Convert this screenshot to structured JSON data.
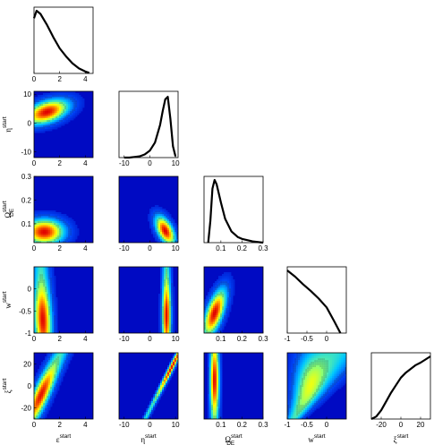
{
  "chart_data": {
    "type": "heatmap",
    "title": "",
    "layout": "corner-plot",
    "grid": false,
    "colormap": [
      "#0000bb",
      "#0050ff",
      "#00c8ff",
      "#7dff82",
      "#ffff00",
      "#ff7800",
      "#e00000"
    ],
    "parameters": [
      {
        "id": "eps",
        "symbol": "ε",
        "sub": "",
        "sup": "start",
        "range": [
          0,
          4.6
        ],
        "ticks": [
          0,
          2,
          4
        ]
      },
      {
        "id": "eta",
        "symbol": "η",
        "sub": "",
        "sup": "start",
        "range": [
          -12,
          11
        ],
        "ticks": [
          -10,
          0,
          10
        ]
      },
      {
        "id": "om",
        "symbol": "Ω",
        "sub": "DE",
        "sup": "start",
        "range": [
          0.02,
          0.3
        ],
        "ticks": [
          0.1,
          0.2,
          0.3
        ]
      },
      {
        "id": "w",
        "symbol": "w",
        "sub": "",
        "sup": "start",
        "range": [
          -1,
          0.5
        ],
        "ticks": [
          -1,
          -0.5,
          0
        ]
      },
      {
        "id": "xi",
        "symbol": "ξ",
        "sub": "",
        "sup": "start",
        "range": [
          -30,
          30
        ],
        "ticks": [
          -20,
          0,
          20
        ]
      }
    ],
    "marginals": [
      {
        "param": "eps",
        "x": [
          0,
          0.2,
          0.5,
          1,
          1.5,
          2,
          2.5,
          3,
          3.5,
          4,
          4.3
        ],
        "density": [
          0.88,
          1.0,
          0.95,
          0.78,
          0.58,
          0.4,
          0.27,
          0.16,
          0.08,
          0.03,
          0.01
        ]
      },
      {
        "param": "eta",
        "x": [
          -10,
          -8,
          -6,
          -4,
          -2,
          0,
          2,
          4,
          5,
          6,
          7,
          8,
          9,
          10
        ],
        "density": [
          0,
          0,
          0.01,
          0.02,
          0.05,
          0.11,
          0.24,
          0.52,
          0.74,
          0.93,
          0.97,
          0.62,
          0.18,
          0.02
        ]
      },
      {
        "param": "om",
        "x": [
          0.04,
          0.05,
          0.06,
          0.07,
          0.08,
          0.1,
          0.12,
          0.15,
          0.18,
          0.2,
          0.25,
          0.3
        ],
        "density": [
          0,
          0.35,
          0.86,
          1.0,
          0.93,
          0.64,
          0.38,
          0.18,
          0.09,
          0.06,
          0.02,
          0.0
        ]
      },
      {
        "param": "w",
        "x": [
          -1,
          -0.8,
          -0.6,
          -0.4,
          -0.2,
          0,
          0.2,
          0.35
        ],
        "density": [
          1.0,
          0.9,
          0.78,
          0.67,
          0.55,
          0.41,
          0.18,
          0.0
        ]
      },
      {
        "param": "xi",
        "x": [
          -30,
          -25,
          -20,
          -15,
          -10,
          -5,
          0,
          5,
          10,
          15,
          20,
          25,
          30
        ],
        "density": [
          0,
          0.04,
          0.14,
          0.28,
          0.42,
          0.54,
          0.66,
          0.74,
          0.8,
          0.86,
          0.9,
          0.95,
          1.0
        ]
      }
    ],
    "joints": [
      {
        "x": "eps",
        "y": "eta",
        "kind": "blob",
        "center": [
          1.0,
          3.8
        ],
        "spread": [
          1.1,
          2.8
        ],
        "corr": 0.45
      },
      {
        "x": "eps",
        "y": "om",
        "kind": "blob",
        "center": [
          0.8,
          0.065
        ],
        "spread": [
          1.0,
          0.035
        ],
        "corr": 0.0
      },
      {
        "x": "eta",
        "y": "om",
        "kind": "blob",
        "center": [
          6.0,
          0.07
        ],
        "spread": [
          2.5,
          0.04
        ],
        "corr": -0.55
      },
      {
        "x": "om",
        "y": "w",
        "kind": "blob",
        "center": [
          0.07,
          -0.55
        ],
        "spread": [
          0.035,
          0.35
        ],
        "corr": 0.65
      },
      {
        "x": "eps",
        "y": "w",
        "kind": "band",
        "slope": -0.15,
        "intercept": 0.6,
        "width": 1.3,
        "peak": [
          0.5,
          -0.7
        ]
      },
      {
        "x": "eta",
        "y": "w",
        "kind": "band",
        "slope": 0.0,
        "intercept": 6.5,
        "width": 3.2,
        "peak": [
          7.0,
          -0.6
        ]
      },
      {
        "x": "eps",
        "y": "xi",
        "kind": "band",
        "slope": 0.04,
        "intercept": 0.9,
        "width": 1.3,
        "peak": [
          0.3,
          -5
        ]
      },
      {
        "x": "eta",
        "y": "xi",
        "kind": "diag",
        "slope": 0.22,
        "intercept": 4.8,
        "width": 2.0,
        "peak": [
          7.5,
          20
        ]
      },
      {
        "x": "om",
        "y": "xi",
        "kind": "band",
        "slope": 0.0,
        "intercept": 0.07,
        "width": 0.04,
        "peak": [
          0.07,
          5
        ]
      },
      {
        "x": "w",
        "y": "xi",
        "kind": "wedge",
        "slope": 0.018,
        "intercept": -0.3,
        "width": 0.55,
        "peak": [
          -0.75,
          15
        ]
      }
    ]
  }
}
